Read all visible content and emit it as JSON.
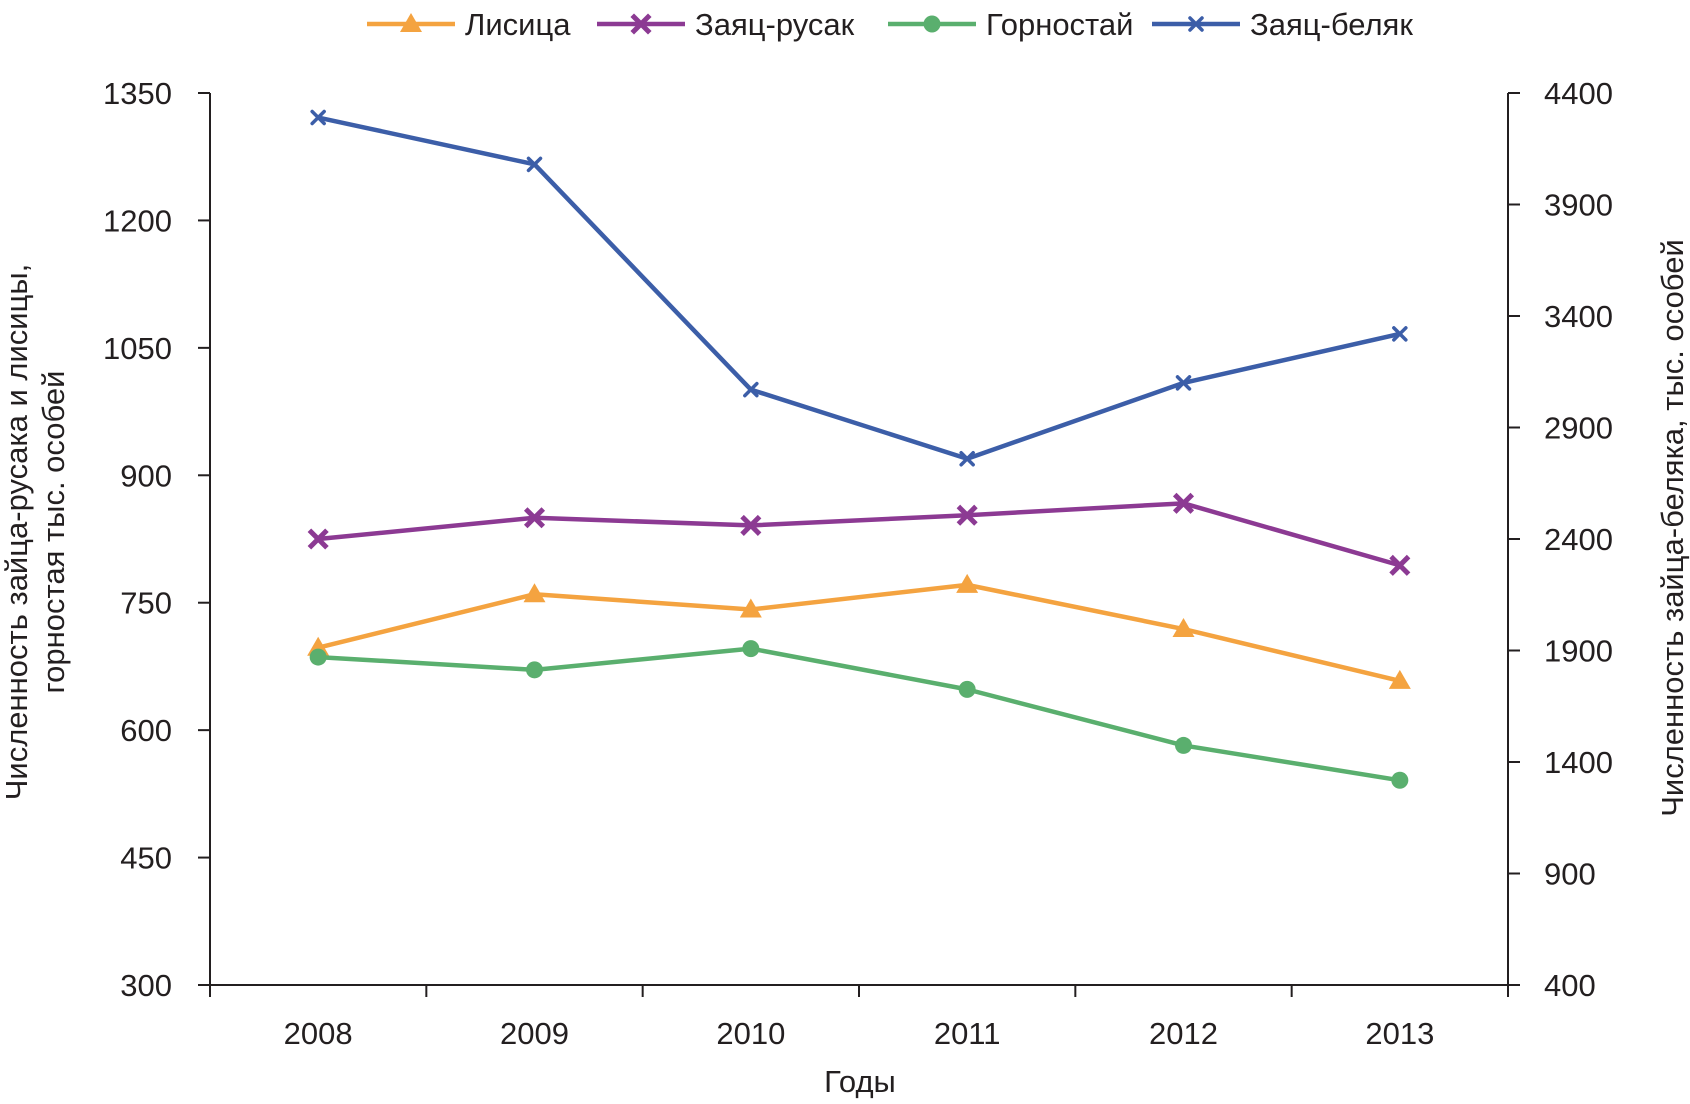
{
  "chart_data": {
    "type": "line",
    "title": "",
    "xlabel": "Годы",
    "ylabel_left": "Численность зайца-русака и лисицы, горностая тыс. особей",
    "ylabel_right": "Численность зайца-беляка, тыс. особей",
    "categories": [
      "2008",
      "2009",
      "2010",
      "2011",
      "2012",
      "2013"
    ],
    "y_left": {
      "min": 300,
      "max": 1350,
      "ticks": [
        300,
        450,
        600,
        750,
        900,
        1050,
        1200,
        1350
      ]
    },
    "y_right": {
      "min": 400,
      "max": 4400,
      "ticks": [
        400,
        900,
        1400,
        1900,
        2400,
        2900,
        3400,
        3900,
        4400
      ]
    },
    "grid": false,
    "legend_position": "top-center",
    "series": [
      {
        "name": "Лисица",
        "axis": "left",
        "marker": "triangle",
        "color": "#f4a340",
        "values": [
          697,
          760,
          742,
          771,
          719,
          658
        ]
      },
      {
        "name": "Заяц-русак",
        "axis": "left",
        "marker": "x-bold",
        "color": "#8c3a93",
        "values": [
          825,
          850,
          841,
          853,
          867,
          794
        ]
      },
      {
        "name": "Горностай",
        "axis": "left",
        "marker": "circle",
        "color": "#5aaf6e",
        "values": [
          686,
          671,
          696,
          648,
          582,
          541
        ]
      },
      {
        "name": "Заяц-беляк",
        "axis": "right",
        "marker": "x",
        "color": "#3c5ea8",
        "values": [
          4290,
          4080,
          3070,
          2760,
          3100,
          3320
        ]
      }
    ]
  }
}
